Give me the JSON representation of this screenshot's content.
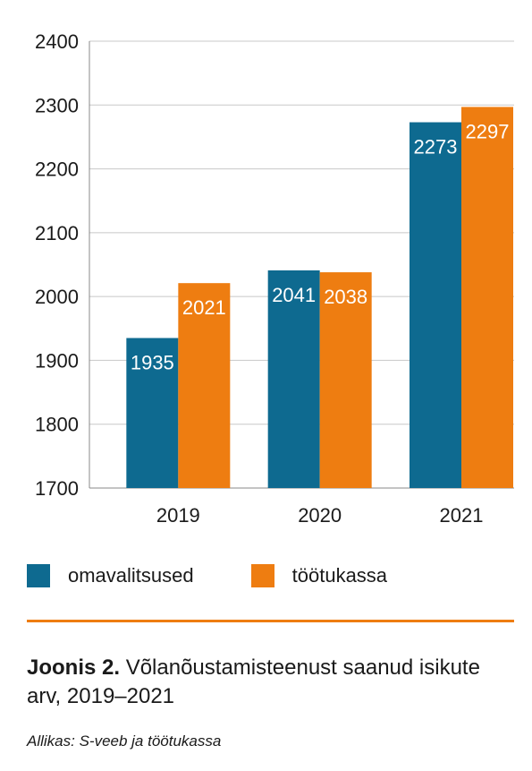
{
  "colors": {
    "omavalitsused": "#0e6a90",
    "tootukassa": "#ee7d11",
    "grid": "#c8c8c8",
    "axis": "#888888",
    "rule": "#ee7d11"
  },
  "chart_data": {
    "type": "bar",
    "categories": [
      "2019",
      "2020",
      "2021"
    ],
    "series": [
      {
        "name": "omavalitsused",
        "values": [
          1935,
          2041,
          2273
        ]
      },
      {
        "name": "töötukassa",
        "values": [
          2021,
          2038,
          2297
        ]
      }
    ],
    "ylim": [
      1700,
      2400
    ],
    "yticks": [
      1700,
      1800,
      1900,
      2000,
      2100,
      2200,
      2300,
      2400
    ],
    "grid": true,
    "legend_position": "bottom"
  },
  "legend": {
    "items": [
      {
        "label": "omavalitsused"
      },
      {
        "label": "töötukassa"
      }
    ]
  },
  "caption": {
    "prefix": "Joonis 2.",
    "text": "Võlanõustamisteenust saanud isikute arv, 2019–2021"
  },
  "source": "Allikas: S-veeb ja töötukassa"
}
